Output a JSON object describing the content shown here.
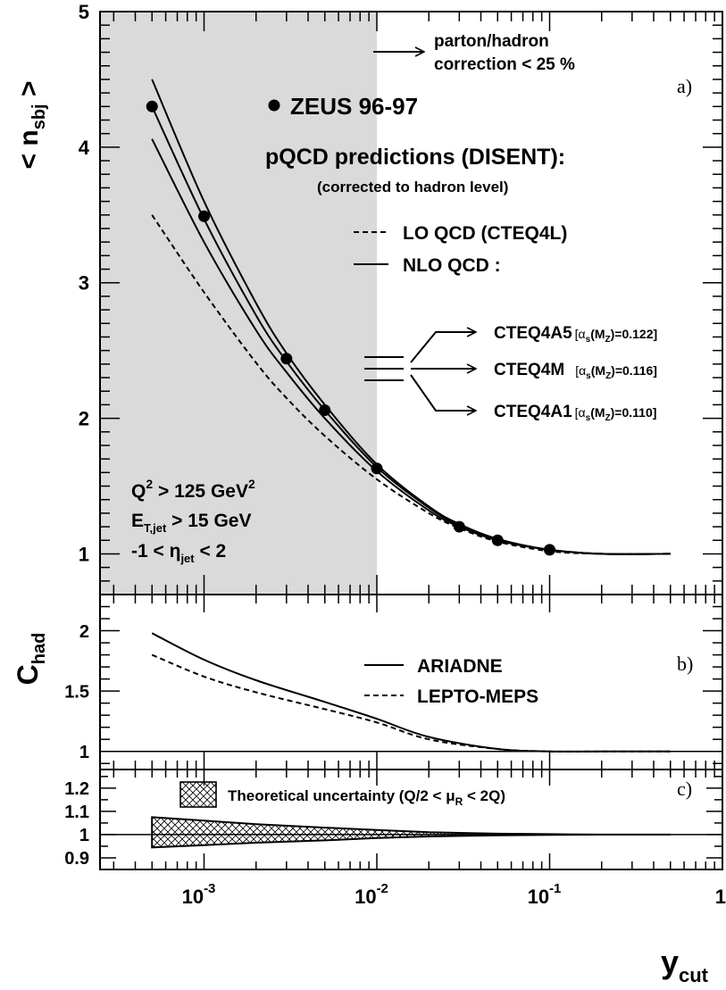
{
  "chart_data": [
    {
      "panel": "a)",
      "type": "line",
      "ylabel": "< n",
      "ylabel_sub": "sbj",
      "ylabel_end": " >",
      "ylim": [
        0.7,
        5.0
      ],
      "yticks": [
        "1",
        "2",
        "3",
        "4",
        "5"
      ],
      "xscale": "log",
      "xlim": [
        0.00025,
        1.0
      ],
      "shaded_xrange": [
        0.00025,
        0.01
      ],
      "annotation_correction": [
        "parton/hadron",
        "correction < 25 %"
      ],
      "legend_data": "ZEUS 96-97",
      "legend_pqcd_title": "pQCD predictions (DISENT):",
      "legend_pqcd_sub": "(corrected to hadron level)",
      "legend_lo": "LO QCD (CTEQ4L)",
      "legend_nlo": "NLO QCD :",
      "legend_pdfs": [
        {
          "name": "CTEQ4A5",
          "alpha_prefix": "[α",
          "alpha_sub": "s",
          "alpha_mid": "(M",
          "alpha_sub2": "Z",
          "alpha_val": ")=0.122]"
        },
        {
          "name": "CTEQ4M",
          "alpha_prefix": "[α",
          "alpha_sub": "s",
          "alpha_mid": "(M",
          "alpha_sub2": "Z",
          "alpha_val": ")=0.116]"
        },
        {
          "name": "CTEQ4A1",
          "alpha_prefix": "[α",
          "alpha_sub": "s",
          "alpha_mid": "(M",
          "alpha_sub2": "Z",
          "alpha_val": ")=0.110]"
        }
      ],
      "cuts": {
        "q2": {
          "main": "Q",
          "sup": "2",
          "rest": " > 125 GeV",
          "sup2": "2"
        },
        "et": {
          "main": "E",
          "sub": "T,jet",
          "rest": " > 15 GeV"
        },
        "eta": {
          "pre": "-1 < η",
          "sub": "jet",
          "rest": " < 2"
        }
      },
      "data_points": {
        "name": "ZEUS 96-97",
        "x": [
          0.0005,
          0.001,
          0.003,
          0.005,
          0.01,
          0.03,
          0.05,
          0.1
        ],
        "y": [
          4.3,
          3.49,
          2.44,
          2.06,
          1.63,
          1.2,
          1.1,
          1.03
        ]
      },
      "series": [
        {
          "name": "CTEQ4A5",
          "style": "solid",
          "x": [
            0.0005,
            0.001,
            0.002,
            0.003,
            0.005,
            0.01,
            0.02,
            0.03,
            0.05,
            0.1,
            0.2,
            0.5
          ],
          "y": [
            4.5,
            3.6,
            2.85,
            2.48,
            2.1,
            1.66,
            1.35,
            1.22,
            1.11,
            1.03,
            1.0,
            1.0
          ]
        },
        {
          "name": "CTEQ4M",
          "style": "solid",
          "x": [
            0.0005,
            0.001,
            0.002,
            0.003,
            0.005,
            0.01,
            0.02,
            0.03,
            0.05,
            0.1,
            0.2,
            0.5
          ],
          "y": [
            4.3,
            3.47,
            2.76,
            2.42,
            2.06,
            1.64,
            1.34,
            1.21,
            1.1,
            1.03,
            1.0,
            1.0
          ]
        },
        {
          "name": "CTEQ4A1",
          "style": "solid",
          "x": [
            0.0005,
            0.001,
            0.002,
            0.003,
            0.005,
            0.01,
            0.02,
            0.03,
            0.05,
            0.1,
            0.2,
            0.5
          ],
          "y": [
            4.06,
            3.3,
            2.65,
            2.34,
            2.0,
            1.61,
            1.32,
            1.2,
            1.1,
            1.03,
            1.0,
            1.0
          ]
        },
        {
          "name": "LO QCD (CTEQ4L)",
          "style": "dashed",
          "x": [
            0.0005,
            0.001,
            0.002,
            0.003,
            0.005,
            0.01,
            0.02,
            0.03,
            0.05,
            0.1,
            0.2,
            0.5
          ],
          "y": [
            3.5,
            2.93,
            2.41,
            2.15,
            1.87,
            1.55,
            1.3,
            1.19,
            1.09,
            1.02,
            1.0,
            1.0
          ]
        }
      ]
    },
    {
      "panel": "b)",
      "type": "line",
      "ylabel": "C",
      "ylabel_sub": "had",
      "ylim": [
        0.85,
        2.3
      ],
      "yticks": [
        "1",
        "1.5",
        "2"
      ],
      "xscale": "log",
      "xlim": [
        0.00025,
        1.0
      ],
      "reference_line": 1.0,
      "series": [
        {
          "name": "ARIADNE",
          "style": "solid",
          "x": [
            0.0005,
            0.001,
            0.002,
            0.005,
            0.01,
            0.02,
            0.05,
            0.1,
            0.2,
            0.5
          ],
          "y": [
            1.98,
            1.76,
            1.59,
            1.41,
            1.27,
            1.12,
            1.02,
            1.0,
            1.0,
            1.0
          ]
        },
        {
          "name": "LEPTO-MEPS",
          "style": "dashed",
          "x": [
            0.0005,
            0.001,
            0.002,
            0.005,
            0.01,
            0.02,
            0.05,
            0.1,
            0.2,
            0.5
          ],
          "y": [
            1.8,
            1.62,
            1.49,
            1.35,
            1.24,
            1.1,
            1.02,
            1.0,
            1.0,
            1.0
          ]
        }
      ]
    },
    {
      "panel": "c)",
      "type": "area",
      "ylim": [
        0.85,
        1.28
      ],
      "yticks": [
        "0.9",
        "1",
        "1.1",
        "1.2"
      ],
      "xscale": "log",
      "xlim": [
        0.00025,
        1.0
      ],
      "xticks": [
        {
          "value": 0.001,
          "base": "10",
          "exp": "-3"
        },
        {
          "value": 0.01,
          "base": "10",
          "exp": "-2"
        },
        {
          "value": 0.1,
          "base": "10",
          "exp": "-1"
        },
        {
          "value": 1.0,
          "base": "1",
          "exp": ""
        }
      ],
      "xlabel": "y",
      "xlabel_sub": "cut",
      "reference_line": 1.0,
      "legend": {
        "pre": "Theoretical uncertainty (Q/2 < μ",
        "sub": "R",
        "post": " < 2Q)"
      },
      "band": {
        "name": "Theoretical uncertainty",
        "x": [
          0.0005,
          0.001,
          0.002,
          0.005,
          0.01,
          0.02,
          0.05,
          0.1,
          0.2,
          0.5
        ],
        "upper": [
          1.075,
          1.06,
          1.045,
          1.03,
          1.02,
          1.01,
          1.004,
          1.002,
          1.0,
          1.0
        ],
        "lower": [
          0.945,
          0.955,
          0.965,
          0.975,
          0.985,
          0.992,
          0.997,
          0.999,
          1.0,
          1.0
        ]
      }
    }
  ]
}
